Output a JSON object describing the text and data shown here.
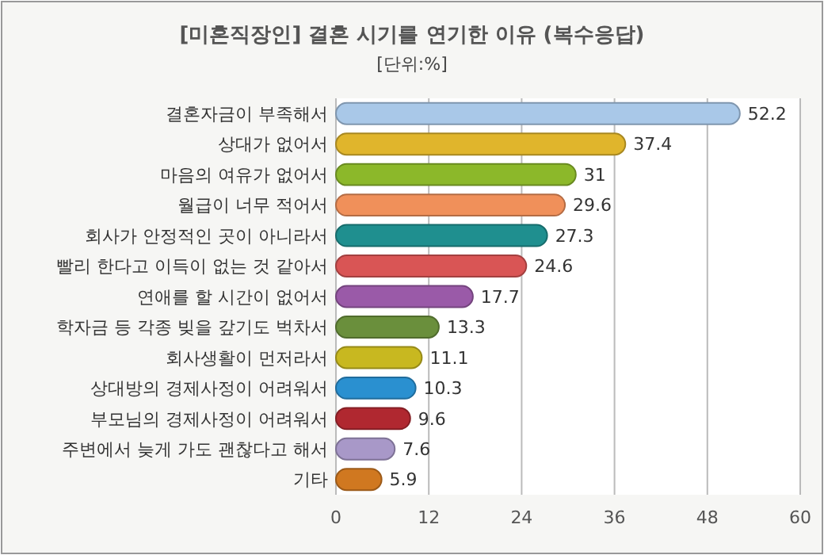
{
  "chart_data": {
    "type": "bar",
    "orientation": "horizontal",
    "title": "[미혼직장인] 결혼 시기를 연기한 이유 (복수응답)",
    "subtitle": "[단위:%]",
    "categories": [
      "결혼자금이 부족해서",
      "상대가 없어서",
      "마음의 여유가 없어서",
      "월급이 너무 적어서",
      "회사가 안정적인 곳이 아니라서",
      "빨리 한다고 이득이 없는 것 같아서",
      "연애를 할 시간이 없어서",
      "학자금 등 각종 빚을 갚기도 벅차서",
      "회사생활이 먼저라서",
      "상대방의 경제사정이 어려워서",
      "부모님의 경제사정이 어려워서",
      "주변에서 늦게 가도 괜찮다고 해서",
      "기타"
    ],
    "values": [
      52.2,
      37.4,
      31,
      29.6,
      27.3,
      24.6,
      17.7,
      13.3,
      11.1,
      10.3,
      9.6,
      7.6,
      5.9
    ],
    "colors": [
      "#a9c8e8",
      "#e0b52c",
      "#8cb82a",
      "#f0905a",
      "#1f8f8f",
      "#d95555",
      "#9a5aa8",
      "#6a8f3c",
      "#c8b820",
      "#2a90d0",
      "#b02830",
      "#a898c8",
      "#d07820"
    ],
    "xlim": [
      0,
      60
    ],
    "xticks": [
      0,
      12,
      24,
      36,
      48,
      60
    ],
    "grid": "x",
    "data_labels": true
  }
}
